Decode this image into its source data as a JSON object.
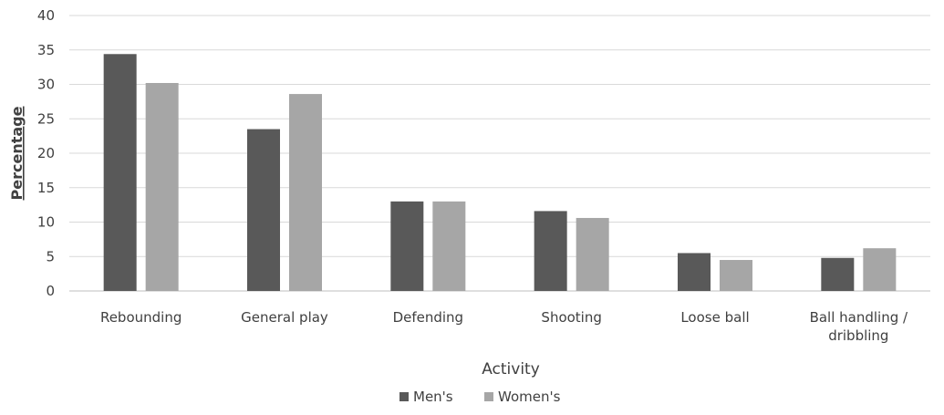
{
  "chart_data": {
    "type": "bar",
    "title": "",
    "xlabel": "Activity",
    "ylabel": "Percentage",
    "ylim": [
      0,
      40
    ],
    "yticks": [
      0,
      5,
      10,
      15,
      20,
      25,
      30,
      35,
      40
    ],
    "grid": true,
    "legend_position": "bottom",
    "categories": [
      [
        "Rebounding"
      ],
      [
        "General play"
      ],
      [
        "Defending"
      ],
      [
        "Shooting"
      ],
      [
        "Loose ball"
      ],
      [
        "Ball handling /",
        "dribbling"
      ]
    ],
    "series": [
      {
        "name": "Men's",
        "color": "#595959",
        "values": [
          34.4,
          23.5,
          13.0,
          11.6,
          5.5,
          4.8
        ]
      },
      {
        "name": "Women's",
        "color": "#a6a6a6",
        "values": [
          30.2,
          28.6,
          13.0,
          10.6,
          4.5,
          6.2
        ]
      }
    ]
  }
}
